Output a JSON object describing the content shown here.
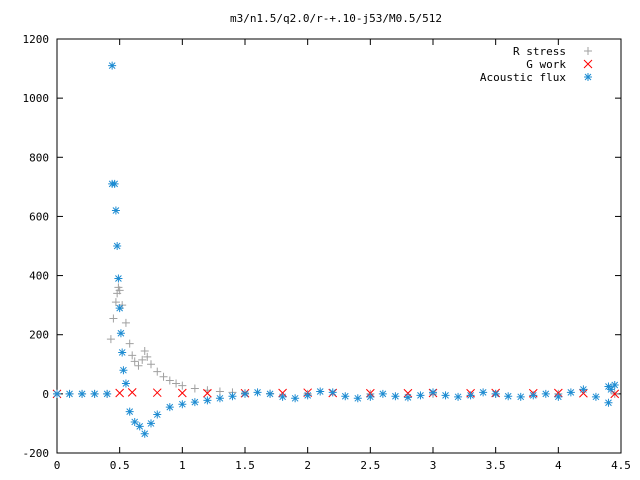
{
  "chart_data": {
    "type": "scatter",
    "title": "m3/n1.5/q2.0/r-+.10-j53/M0.5/512",
    "xlabel": "",
    "ylabel": "",
    "xlim": [
      0,
      4.5
    ],
    "ylim": [
      -200,
      1200
    ],
    "xticks": [
      "0",
      "0.5",
      "1",
      "1.5",
      "2",
      "2.5",
      "3",
      "3.5",
      "4",
      "4.5"
    ],
    "yticks": [
      "-200",
      "0",
      "200",
      "400",
      "600",
      "800",
      "1000",
      "1200"
    ],
    "grid": false,
    "legend_position": "top-right",
    "series": [
      {
        "name": "R stress",
        "marker": "plus",
        "color": "#a0a0a0",
        "x": [
          0.0,
          0.1,
          0.2,
          0.3,
          0.4,
          0.43,
          0.45,
          0.47,
          0.48,
          0.49,
          0.5,
          0.52,
          0.55,
          0.58,
          0.6,
          0.62,
          0.65,
          0.68,
          0.7,
          0.72,
          0.75,
          0.8,
          0.85,
          0.9,
          0.95,
          1.0,
          1.1,
          1.2,
          1.3,
          1.4,
          1.5,
          1.7,
          2.0,
          2.5,
          3.0,
          3.5,
          4.0,
          4.45
        ],
        "y": [
          0,
          0,
          0,
          0,
          0,
          185,
          255,
          310,
          340,
          360,
          350,
          300,
          240,
          170,
          130,
          110,
          95,
          115,
          145,
          125,
          100,
          75,
          58,
          45,
          35,
          28,
          18,
          12,
          8,
          5,
          3,
          1,
          0,
          0,
          0,
          0,
          0,
          0
        ]
      },
      {
        "name": "G work",
        "marker": "cross",
        "color": "#ff0000",
        "x": [
          0.0,
          0.5,
          0.6,
          0.8,
          1.0,
          1.2,
          1.5,
          1.8,
          2.0,
          2.2,
          2.5,
          2.8,
          3.0,
          3.3,
          3.5,
          3.8,
          4.0,
          4.2,
          4.45
        ],
        "y": [
          0,
          3,
          5,
          4,
          3,
          2,
          2,
          3,
          4,
          3,
          2,
          2,
          3,
          2,
          3,
          2,
          3,
          2,
          0
        ]
      },
      {
        "name": "Acoustic flux",
        "marker": "star",
        "color": "#1e8cd2",
        "x": [
          0.0,
          0.1,
          0.2,
          0.3,
          0.4,
          0.44,
          0.44,
          0.46,
          0.47,
          0.48,
          0.49,
          0.5,
          0.51,
          0.52,
          0.53,
          0.55,
          0.58,
          0.62,
          0.66,
          0.7,
          0.75,
          0.8,
          0.9,
          1.0,
          1.1,
          1.2,
          1.3,
          1.4,
          1.5,
          1.6,
          1.7,
          1.8,
          1.9,
          2.0,
          2.1,
          2.2,
          2.3,
          2.4,
          2.5,
          2.6,
          2.7,
          2.8,
          2.9,
          3.0,
          3.1,
          3.2,
          3.3,
          3.4,
          3.5,
          3.6,
          3.7,
          3.8,
          3.9,
          4.0,
          4.1,
          4.2,
          4.3,
          4.4,
          4.45,
          4.4,
          4.42
        ],
        "y": [
          0,
          0,
          0,
          0,
          0,
          1110,
          710,
          710,
          620,
          500,
          390,
          290,
          205,
          140,
          80,
          35,
          -60,
          -95,
          -110,
          -135,
          -100,
          -70,
          -45,
          -35,
          -28,
          -22,
          -15,
          -8,
          0,
          5,
          0,
          -10,
          -15,
          -5,
          8,
          5,
          -8,
          -15,
          -10,
          0,
          -8,
          -12,
          -5,
          5,
          -5,
          -10,
          -5,
          5,
          0,
          -8,
          -10,
          -5,
          0,
          -10,
          5,
          15,
          -10,
          25,
          30,
          -30,
          15
        ]
      }
    ]
  }
}
